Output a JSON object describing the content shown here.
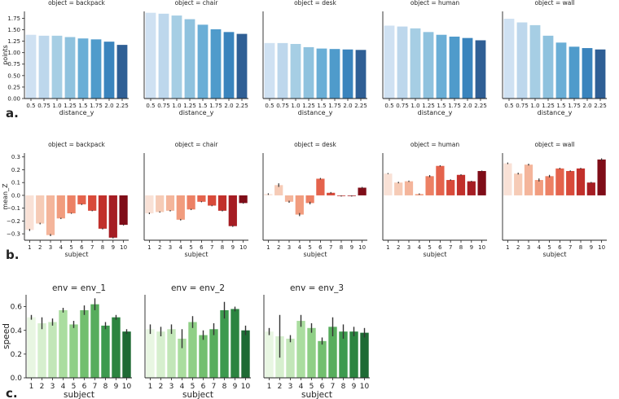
{
  "figure_labels": [
    "a.",
    "b.",
    "c."
  ],
  "chart_data": [
    {
      "type": "bar",
      "panel": "a",
      "ylabel": "points",
      "xlabel": "distance_y",
      "ylim": [
        0,
        1.9
      ],
      "yticks": [
        "0.00",
        "0.25",
        "0.50",
        "0.75",
        "1.00",
        "1.25",
        "1.50",
        "1.75"
      ],
      "ytick_values": [
        0,
        0.25,
        0.5,
        0.75,
        1.0,
        1.25,
        1.5,
        1.75
      ],
      "categories": [
        "0.5",
        "0.75",
        "1.0",
        "1.25",
        "1.5",
        "1.75",
        "2.0",
        "2.25"
      ],
      "colors": [
        "#cfe1f2",
        "#bdd7ec",
        "#a6cee4",
        "#8fc2de",
        "#6aaed6",
        "#4f9bcb",
        "#3a84bd",
        "#2f5f95"
      ],
      "series": [
        {
          "name": "object = backpack",
          "values": [
            1.39,
            1.37,
            1.37,
            1.34,
            1.31,
            1.29,
            1.24,
            1.17
          ]
        },
        {
          "name": "object = chair",
          "values": [
            1.87,
            1.85,
            1.81,
            1.73,
            1.61,
            1.51,
            1.45,
            1.41
          ]
        },
        {
          "name": "object = desk",
          "values": [
            1.21,
            1.21,
            1.19,
            1.12,
            1.09,
            1.08,
            1.07,
            1.06
          ]
        },
        {
          "name": "object = human",
          "values": [
            1.59,
            1.57,
            1.53,
            1.45,
            1.39,
            1.35,
            1.32,
            1.27
          ]
        },
        {
          "name": "object = wall",
          "values": [
            1.74,
            1.66,
            1.6,
            1.37,
            1.22,
            1.13,
            1.1,
            1.07
          ]
        }
      ]
    },
    {
      "type": "bar",
      "panel": "b",
      "ylabel": "mean_Z",
      "xlabel": "subject",
      "ylim": [
        -0.35,
        0.33
      ],
      "yticks": [
        "−0.3",
        "−0.2",
        "−0.1",
        "0.0",
        "0.1",
        "0.2",
        "0.3"
      ],
      "ytick_values": [
        -0.3,
        -0.2,
        -0.1,
        0.0,
        0.1,
        0.2,
        0.3
      ],
      "categories": [
        "1",
        "2",
        "3",
        "4",
        "5",
        "6",
        "7",
        "8",
        "9",
        "10"
      ],
      "colors": [
        "#f9e1d6",
        "#f6cbb6",
        "#f4b59b",
        "#f19c7e",
        "#ec8064",
        "#e4634c",
        "#d84a3a",
        "#c1302b",
        "#a51d23",
        "#7f0d18"
      ],
      "series": [
        {
          "name": "object = backpack",
          "values": [
            -0.27,
            -0.22,
            -0.31,
            -0.18,
            -0.14,
            -0.07,
            -0.12,
            -0.26,
            -0.33,
            -0.23
          ],
          "errors": [
            0.008,
            0.006,
            0.008,
            0.005,
            0.004,
            0.005,
            0.004,
            0.006,
            0.006,
            0.005
          ]
        },
        {
          "name": "object = chair",
          "values": [
            -0.14,
            -0.13,
            -0.12,
            -0.19,
            -0.11,
            -0.05,
            -0.08,
            -0.12,
            -0.24,
            -0.06
          ],
          "errors": [
            0.006,
            0.005,
            0.005,
            0.006,
            0.005,
            0.004,
            0.005,
            0.005,
            0.006,
            0.005
          ]
        },
        {
          "name": "object = desk",
          "values": [
            0.01,
            0.08,
            -0.05,
            -0.15,
            -0.06,
            0.13,
            0.02,
            -0.005,
            -0.005,
            0.06
          ],
          "errors": [
            0.006,
            0.014,
            0.008,
            0.012,
            0.01,
            0.006,
            0.006,
            0.004,
            0.004,
            0.006
          ]
        },
        {
          "name": "object = human",
          "values": [
            0.17,
            0.1,
            0.11,
            0.01,
            0.15,
            0.23,
            0.12,
            0.16,
            0.11,
            0.19
          ],
          "errors": [
            0.004,
            0.006,
            0.005,
            0.005,
            0.008,
            0.005,
            0.005,
            0.005,
            0.004,
            0.004
          ]
        },
        {
          "name": "object = wall",
          "values": [
            0.25,
            0.17,
            0.24,
            0.12,
            0.15,
            0.21,
            0.19,
            0.21,
            0.1,
            0.28
          ],
          "errors": [
            0.006,
            0.007,
            0.007,
            0.012,
            0.01,
            0.005,
            0.005,
            0.005,
            0.005,
            0.009
          ]
        }
      ]
    },
    {
      "type": "bar",
      "panel": "c",
      "ylabel": "speed",
      "xlabel": "subject",
      "ylim": [
        0,
        0.7
      ],
      "yticks": [
        "0.0",
        "0.2",
        "0.4",
        "0.6"
      ],
      "ytick_values": [
        0,
        0.2,
        0.4,
        0.6
      ],
      "categories": [
        "1",
        "2",
        "3",
        "4",
        "5",
        "6",
        "7",
        "8",
        "9",
        "10"
      ],
      "colors": [
        "#e8f6e2",
        "#d6efce",
        "#c2e6b8",
        "#aadd9f",
        "#8fcf86",
        "#72bf6f",
        "#57ad5d",
        "#3d9a4e",
        "#2c8440",
        "#1e6a34"
      ],
      "series": [
        {
          "name": "env = env_1",
          "values": [
            0.51,
            0.46,
            0.47,
            0.57,
            0.45,
            0.57,
            0.62,
            0.44,
            0.51,
            0.39
          ],
          "errors": [
            0.02,
            0.05,
            0.03,
            0.02,
            0.03,
            0.04,
            0.05,
            0.03,
            0.02,
            0.02
          ]
        },
        {
          "name": "env = env_2",
          "values": [
            0.41,
            0.39,
            0.41,
            0.33,
            0.47,
            0.36,
            0.41,
            0.57,
            0.58,
            0.4
          ],
          "errors": [
            0.04,
            0.04,
            0.04,
            0.08,
            0.05,
            0.04,
            0.05,
            0.07,
            0.02,
            0.04
          ]
        },
        {
          "name": "env = env_3",
          "values": [
            0.39,
            0.35,
            0.33,
            0.48,
            0.42,
            0.31,
            0.43,
            0.39,
            0.39,
            0.38
          ],
          "errors": [
            0.03,
            0.18,
            0.03,
            0.05,
            0.04,
            0.03,
            0.08,
            0.06,
            0.04,
            0.04
          ]
        }
      ]
    }
  ]
}
